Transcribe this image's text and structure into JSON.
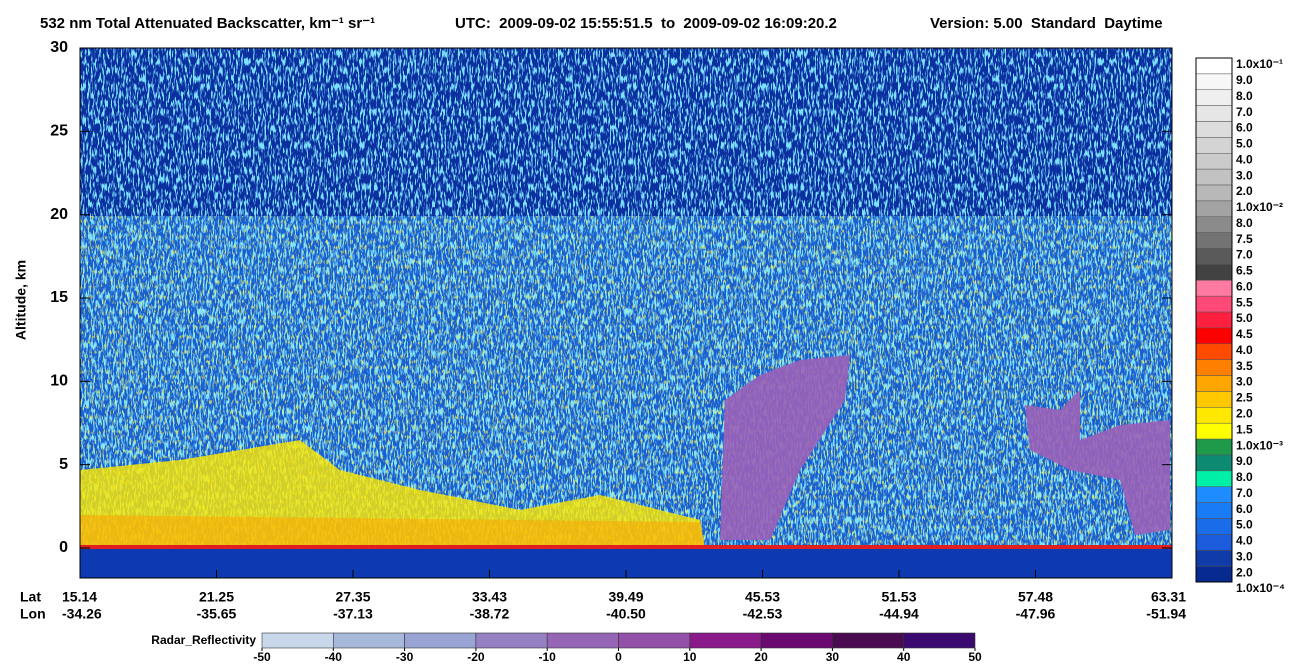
{
  "chart_data": {
    "type": "curtain",
    "title": "532 nm Total Attenuated Backscatter, km⁻¹ sr⁻¹",
    "time_range": "UTC:  2009-09-02 15:55:51.5  to  2009-09-02 16:09:20.2",
    "version": "Version: 5.00  Standard  Daytime",
    "ylabel": "Altitude, km",
    "ylim": [
      -1.8,
      30
    ],
    "yticks": [
      0,
      5,
      10,
      15,
      20,
      25,
      30
    ],
    "x_rows": [
      {
        "name": "Lat",
        "labels": [
          "15.14",
          "21.25",
          "27.35",
          "33.43",
          "39.49",
          "45.53",
          "51.53",
          "57.48",
          "63.31"
        ]
      },
      {
        "name": "Lon",
        "labels": [
          "-34.26",
          "-35.65",
          "-37.13",
          "-38.72",
          "-40.50",
          "-42.53",
          "-44.94",
          "-47.96",
          "-51.94"
        ]
      }
    ],
    "colorbar": {
      "labels": [
        "1.0x10⁻¹",
        "9.0",
        "8.0",
        "7.0",
        "6.0",
        "5.0",
        "4.0",
        "3.0",
        "2.0",
        "1.0x10⁻²",
        "8.0",
        "7.5",
        "7.0",
        "6.5",
        "6.0",
        "5.5",
        "5.0",
        "4.5",
        "4.0",
        "3.5",
        "3.0",
        "2.5",
        "2.0",
        "1.5",
        "1.0x10⁻³",
        "9.0",
        "8.0",
        "7.0",
        "6.0",
        "5.0",
        "4.0",
        "3.0",
        "2.0",
        "1.0x10⁻⁴"
      ],
      "colors": [
        "#ffffff",
        "#f7f7f7",
        "#efefef",
        "#e6e6e6",
        "#dddddd",
        "#d4d4d4",
        "#cbcbcb",
        "#c2c2c2",
        "#b8b8b8",
        "#a3a3a3",
        "#8b8b8b",
        "#737373",
        "#5a5a5a",
        "#424242",
        "#ff7aa0",
        "#ff4a78",
        "#ff2040",
        "#ff0000",
        "#ff4a00",
        "#ff7f00",
        "#ffa600",
        "#ffc800",
        "#ffe800",
        "#ffff00",
        "#1f9a4a",
        "#0c8a72",
        "#00f0a8",
        "#1e8cff",
        "#1a7cf5",
        "#1a6ce8",
        "#1a5cdc",
        "#0f3ca8",
        "#062a90"
      ]
    },
    "radar_colorbar": {
      "label": "Radar_Reflectivity",
      "ticks": [
        -50,
        -40,
        -30,
        -20,
        -10,
        0,
        10,
        20,
        30,
        40,
        50
      ],
      "colors": [
        "#c8d8ea",
        "#a6b9da",
        "#9aa4d4",
        "#9580c4",
        "#9666b6",
        "#9250a8",
        "#8a1a8a",
        "#6a0a70",
        "#4a0a50",
        "#3a0a70"
      ]
    }
  }
}
